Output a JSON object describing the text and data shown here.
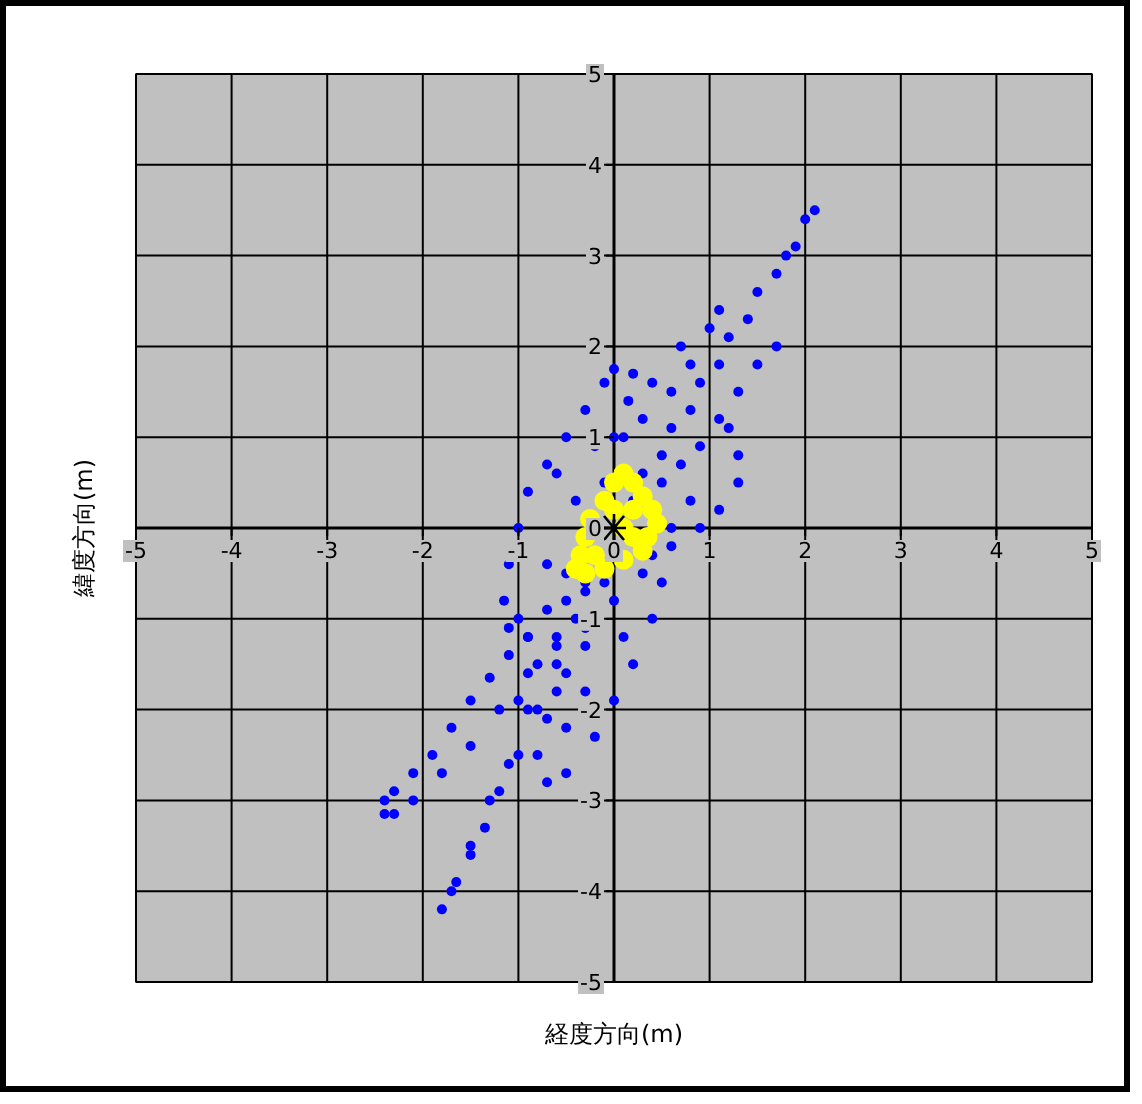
{
  "chart_data": {
    "type": "scatter",
    "xlabel": "経度方向(m)",
    "ylabel": "緯度方向(m)",
    "xlim": [
      -5,
      5
    ],
    "ylim": [
      -5,
      5
    ],
    "xticks": [
      -5,
      -4,
      -3,
      -2,
      -1,
      0,
      1,
      2,
      3,
      4,
      5
    ],
    "yticks": [
      -5,
      -4,
      -3,
      -2,
      -1,
      0,
      1,
      2,
      3,
      4,
      5
    ],
    "grid": true,
    "series": [
      {
        "color": "#0000ff",
        "marker": "circle",
        "x": [
          0.2,
          0.5,
          0.8,
          1.1,
          1.4,
          1.7,
          1.9,
          2.1,
          2.0,
          1.8,
          1.5,
          1.2,
          0.9,
          0.6,
          0.3,
          -0.3,
          -0.6,
          -0.9,
          -1.1,
          -1.3,
          -1.5,
          -1.65,
          -1.8,
          -1.7,
          -1.5,
          -1.35,
          -1.2,
          -1.0,
          -0.8,
          -0.6,
          -0.4,
          -0.5,
          -0.9,
          -1.1,
          -1.3,
          -1.5,
          -1.7,
          -1.9,
          -2.1,
          -2.3,
          -2.4,
          -2.4,
          -2.3,
          -2.1,
          -1.8,
          -1.5,
          -1.2,
          -0.9,
          -0.6,
          -0.3,
          0.2,
          0.0,
          -0.1,
          -0.3,
          -0.5,
          -0.7,
          -0.9,
          -1.0,
          -1.1,
          -1.15,
          -1.1,
          -0.9,
          -0.7,
          -0.5,
          -0.1,
          0.1,
          0.15,
          1.7,
          1.5,
          1.3,
          1.1,
          0.9,
          1.2,
          1.3,
          1.3,
          1.1,
          0.9,
          0.6,
          0.4,
          0.5,
          0.4,
          0.2,
          0.0,
          -0.2,
          -0.5,
          -0.7,
          -0.8,
          -0.7,
          -0.5,
          -0.3,
          -0.1,
          0.0,
          0.3,
          0.6,
          0.8,
          1.0,
          0.5,
          0.7,
          0.8,
          0.6,
          0.3,
          0.0,
          -0.3,
          -0.6,
          -0.8,
          -1.0,
          -0.7,
          -0.4,
          -0.6,
          -0.2,
          0.4,
          0.7,
          1.1,
          -0.5,
          -1.0,
          -0.3,
          0.1
        ],
        "values": [
          0.3,
          0.8,
          1.3,
          1.8,
          2.3,
          2.8,
          3.1,
          3.5,
          3.4,
          3.0,
          2.6,
          2.1,
          1.6,
          1.1,
          0.6,
          -0.6,
          -1.3,
          -2.0,
          -2.6,
          -3.0,
          -3.5,
          -3.9,
          -4.2,
          -4.0,
          -3.6,
          -3.3,
          -2.9,
          -2.5,
          -2.0,
          -1.5,
          -1.0,
          -0.8,
          -1.2,
          -1.4,
          -1.65,
          -1.9,
          -2.2,
          -2.5,
          -2.7,
          -2.9,
          -3.0,
          -3.15,
          -3.15,
          -3.0,
          -2.7,
          -2.4,
          -2.0,
          -1.6,
          -1.2,
          -0.7,
          1.7,
          1.75,
          1.6,
          1.3,
          1.0,
          0.7,
          0.4,
          0.0,
          -0.4,
          -0.8,
          -1.1,
          -1.2,
          -0.9,
          -0.5,
          0.5,
          1.0,
          1.4,
          2.0,
          1.8,
          1.5,
          1.2,
          0.9,
          1.1,
          0.8,
          0.5,
          0.2,
          0.0,
          -0.2,
          -0.3,
          -0.6,
          -1.0,
          -1.5,
          -1.9,
          -2.3,
          -2.7,
          -2.8,
          -2.5,
          -2.1,
          -1.6,
          -1.1,
          -0.6,
          1.0,
          1.2,
          1.5,
          1.8,
          2.2,
          0.5,
          0.7,
          0.3,
          0.0,
          -0.5,
          -0.8,
          -1.3,
          -1.8,
          -1.5,
          -1.0,
          -0.4,
          0.3,
          0.6,
          0.9,
          1.6,
          2.0,
          2.4,
          -2.2,
          -1.9,
          -1.8,
          -1.2
        ]
      },
      {
        "color": "#ffff00",
        "marker": "circle",
        "x": [
          0.1,
          0.2,
          0.3,
          0.4,
          0.45,
          0.35,
          0.3,
          0.1,
          -0.1,
          -0.3,
          -0.4,
          -0.35,
          -0.3,
          -0.25,
          -0.1,
          0.0,
          0.0,
          0.2,
          0.2,
          -0.2,
          0.1
        ],
        "values": [
          0.6,
          0.5,
          0.35,
          0.2,
          0.05,
          -0.1,
          -0.25,
          -0.35,
          -0.45,
          -0.5,
          -0.45,
          -0.3,
          -0.1,
          0.1,
          0.3,
          0.5,
          0.2,
          0.2,
          -0.1,
          -0.3,
          0.0
        ]
      },
      {
        "color": "#000000",
        "marker": "cross",
        "x": [
          0
        ],
        "values": [
          0
        ]
      }
    ]
  }
}
